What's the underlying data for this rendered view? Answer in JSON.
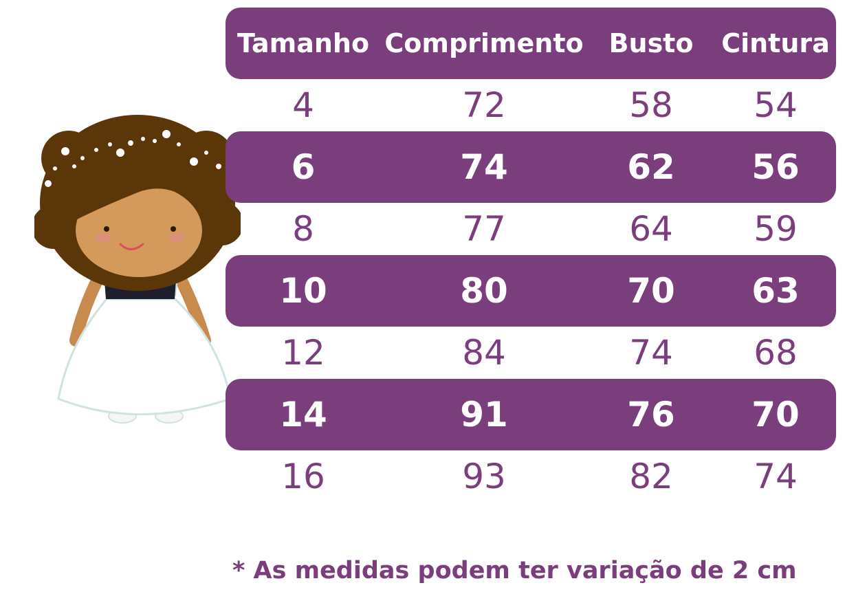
{
  "colors": {
    "accent": "#7b3e7d",
    "band_text": "#ffffff",
    "plain_text": "#7b3e7d"
  },
  "illustration": {
    "icon": "girl-flower-dress-icon"
  },
  "table": {
    "headers": [
      "Tamanho",
      "Comprimento",
      "Busto",
      "Cintura"
    ],
    "rows": [
      [
        "4",
        "72",
        "58",
        "54"
      ],
      [
        "6",
        "74",
        "62",
        "56"
      ],
      [
        "8",
        "77",
        "64",
        "59"
      ],
      [
        "10",
        "80",
        "70",
        "63"
      ],
      [
        "12",
        "84",
        "74",
        "68"
      ],
      [
        "14",
        "91",
        "76",
        "70"
      ],
      [
        "16",
        "93",
        "82",
        "74"
      ]
    ]
  },
  "footnote": "* As medidas podem ter variação de 2 cm"
}
